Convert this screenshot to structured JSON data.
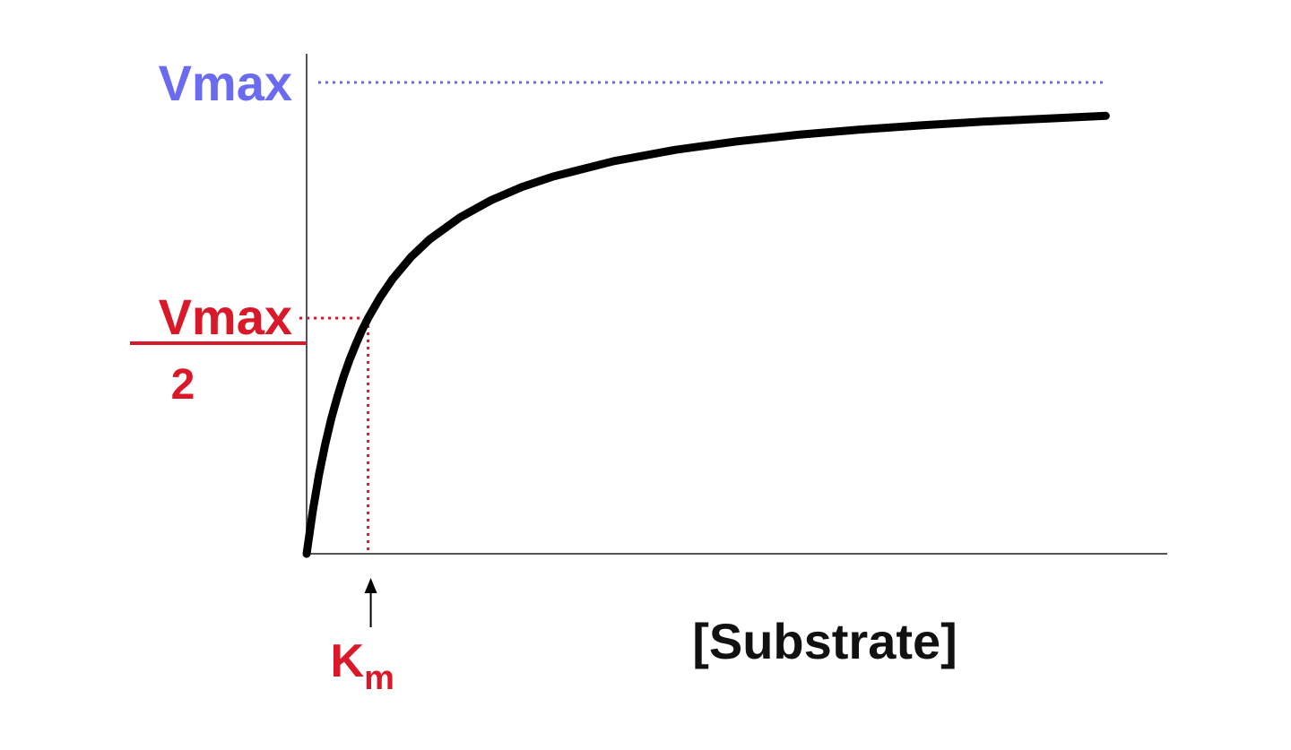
{
  "chart_data": {
    "type": "line",
    "title": "",
    "xlabel": "[Substrate]",
    "ylabel": "",
    "x_unit": "Km",
    "y_unit": "Vmax",
    "x": [
      0,
      0.1,
      0.2,
      0.3,
      0.4,
      0.5,
      0.6,
      0.7,
      0.8,
      0.9,
      1.0,
      1.2,
      1.4,
      1.7,
      2.0,
      2.5,
      3.0,
      3.5,
      4.0,
      5.0,
      6.0,
      7.0,
      8.0,
      9.0,
      10.0,
      11.0,
      12.0,
      13.0
    ],
    "y": [
      0,
      0.091,
      0.167,
      0.231,
      0.286,
      0.333,
      0.375,
      0.412,
      0.444,
      0.474,
      0.5,
      0.545,
      0.583,
      0.63,
      0.667,
      0.714,
      0.75,
      0.778,
      0.8,
      0.833,
      0.857,
      0.875,
      0.889,
      0.9,
      0.909,
      0.917,
      0.923,
      0.929
    ],
    "xlim": [
      0,
      13.4
    ],
    "ylim": [
      0,
      1
    ],
    "grid": false,
    "reference_lines": {
      "vmax": {
        "value": 1,
        "label": "Vmax",
        "color": "#6b6bf0"
      },
      "half_vmax": {
        "value": 0.5,
        "numerator": "Vmax",
        "denominator": "2",
        "color": "#d9182a"
      },
      "km": {
        "value": 1,
        "label": "K",
        "subscript": "m",
        "color": "#d9182a"
      }
    },
    "curve_color": "#000000",
    "axis_color": "#555555"
  }
}
